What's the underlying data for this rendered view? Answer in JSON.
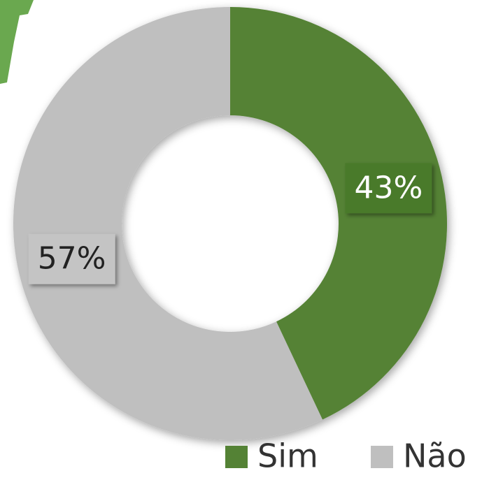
{
  "chart_data": {
    "type": "donut",
    "categories": [
      "Sim",
      "Não"
    ],
    "values": [
      43,
      57
    ],
    "value_labels": [
      "43%",
      "57%"
    ],
    "colors": [
      "#548235",
      "#bfbfbf"
    ],
    "legend": "bottom-right"
  }
}
